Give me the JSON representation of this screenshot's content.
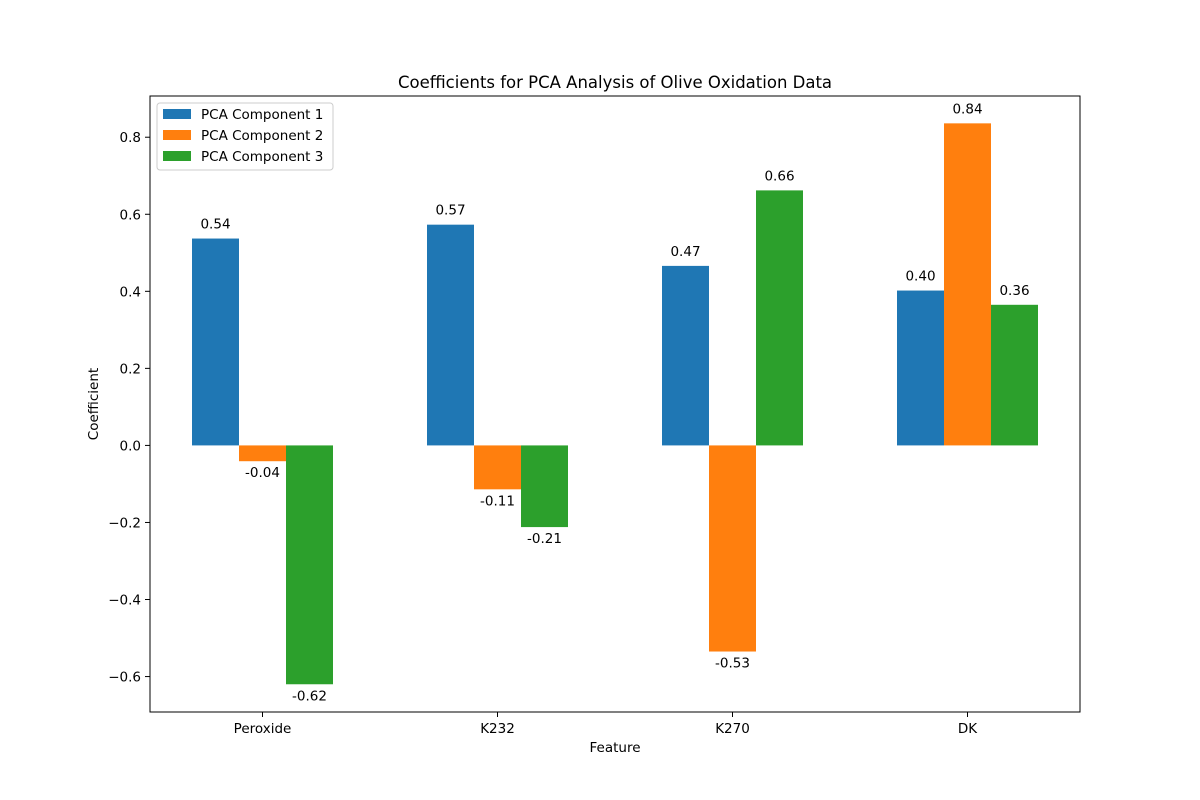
{
  "chart_data": {
    "type": "bar",
    "title": "Coefficients for PCA Analysis of Olive Oxidation Data",
    "xlabel": "Feature",
    "ylabel": "Coefficient",
    "categories": [
      "Peroxide",
      "K232",
      "K270",
      "DK"
    ],
    "series": [
      {
        "name": "PCA Component 1",
        "color": "#1f77b4",
        "values": [
          0.537,
          0.573,
          0.466,
          0.402
        ],
        "labels": [
          "0.54",
          "0.57",
          "0.47",
          "0.40"
        ]
      },
      {
        "name": "PCA Component 2",
        "color": "#ff7f0e",
        "values": [
          -0.041,
          -0.114,
          -0.535,
          0.836
        ],
        "labels": [
          "-0.04",
          "-0.11",
          "-0.53",
          "0.84"
        ]
      },
      {
        "name": "PCA Component 3",
        "color": "#2ca02c",
        "values": [
          -0.62,
          -0.212,
          0.662,
          0.365
        ],
        "labels": [
          "-0.62",
          "-0.21",
          "0.66",
          "0.36"
        ]
      }
    ],
    "ylim": [
      -0.692,
      0.907
    ],
    "yticks": [
      -0.6,
      -0.4,
      -0.2,
      0.0,
      0.2,
      0.4,
      0.6,
      0.8
    ],
    "ytick_labels": [
      "−0.6",
      "−0.4",
      "−0.2",
      "0.0",
      "0.2",
      "0.4",
      "0.6",
      "0.8"
    ],
    "grid": false,
    "legend_position": "top-left"
  }
}
